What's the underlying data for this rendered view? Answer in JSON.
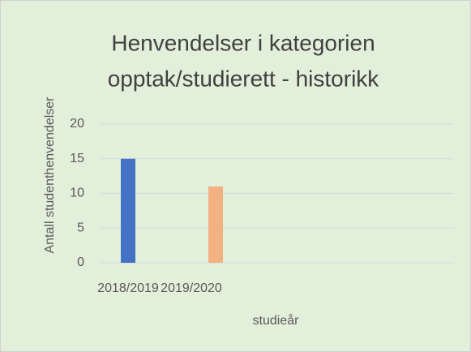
{
  "chart_data": {
    "type": "bar",
    "title": [
      "Henvendelser i kategorien",
      "opptak/studierett - historikk"
    ],
    "categories": [
      "2018/2019",
      "2019/2020"
    ],
    "values": [
      15,
      11
    ],
    "colors": [
      "#4472c4",
      "#f4b183"
    ],
    "ylim": [
      0,
      20
    ],
    "yticks": [
      0,
      5,
      10,
      15,
      20
    ],
    "grid": true,
    "x_label": "studieår",
    "y_label": "Antall studenthenvendelser"
  }
}
